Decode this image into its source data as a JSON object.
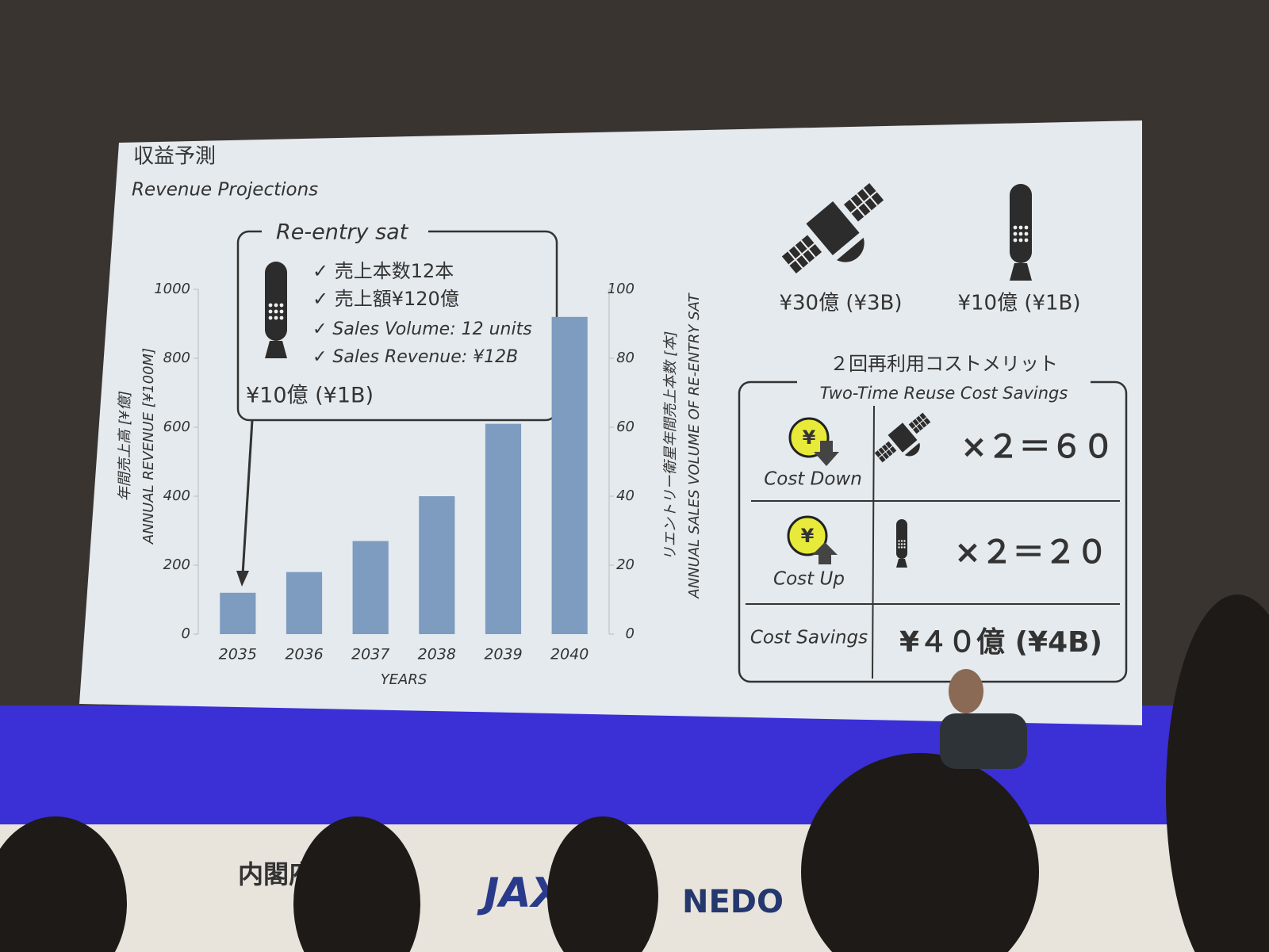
{
  "header": {
    "title": "収益予測",
    "subtitle": "Revenue Projections"
  },
  "callout": {
    "title": "Re-entry sat",
    "items": [
      "✓ 売上本数12本",
      "✓ 売上額¥120億",
      "✓ Sales Volume: 12 units",
      "✓ Sales Revenue: ¥12B"
    ],
    "price": "¥10億 (¥1B)"
  },
  "chart_data": {
    "type": "bar",
    "categories": [
      "2035",
      "2036",
      "2037",
      "2038",
      "2039",
      "2040"
    ],
    "values": [
      120,
      180,
      270,
      400,
      610,
      920
    ],
    "color": "#7e9bc0",
    "ylim": [
      0,
      1000
    ],
    "yticks": [
      0,
      200,
      400,
      600,
      800,
      1000
    ],
    "y2lim": [
      0,
      100
    ],
    "y2ticks": [
      0,
      20,
      40,
      60,
      80,
      100
    ],
    "xlabel": "YEARS",
    "ylabel": [
      "年間売上高 [¥億]",
      "ANNUAL REVENUE [¥100M]"
    ],
    "y2label": [
      "リエントリー衛星年間売上本数 [本]",
      "ANNUAL SALES VOLUME OF RE-ENTRY SAT"
    ],
    "grid": false
  },
  "prices": {
    "satellite": "¥30億 (¥3B)",
    "reentry": "¥10億 (¥1B)"
  },
  "savings": {
    "title": "２回再利用コストメリット",
    "subtitle": "Two-Time Reuse Cost Savings",
    "coin": "¥",
    "rows": [
      {
        "label": "Cost Down",
        "value": "×２＝６０"
      },
      {
        "label": "Cost Up",
        "value": "×２＝２０"
      },
      {
        "label": "Cost Savings",
        "value": "¥４０億 (¥4B)"
      }
    ]
  },
  "banner": [
    "内閣府",
    "JAXA",
    "NEDO"
  ]
}
